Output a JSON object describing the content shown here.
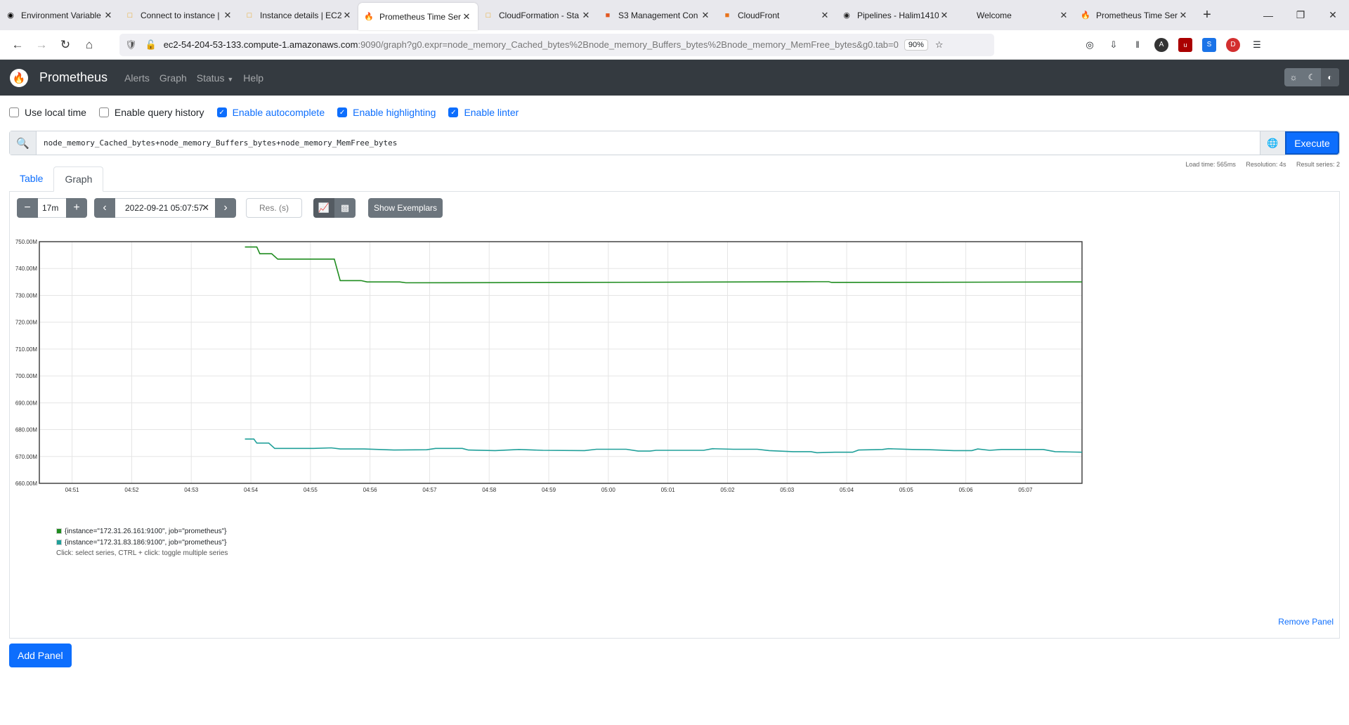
{
  "browser": {
    "tabs": [
      {
        "title": "Environment Variable",
        "icon": "github-icon",
        "active": false
      },
      {
        "title": "Connect to instance |",
        "icon": "aws-icon",
        "active": false
      },
      {
        "title": "Instance details | EC2",
        "icon": "aws-icon",
        "active": false
      },
      {
        "title": "Prometheus Time Ser",
        "icon": "prometheus-icon",
        "active": true
      },
      {
        "title": "CloudFormation - Sta",
        "icon": "aws-icon",
        "active": false
      },
      {
        "title": "S3 Management Con",
        "icon": "s3-icon",
        "active": false
      },
      {
        "title": "CloudFront",
        "icon": "cloudfront-icon",
        "active": false
      },
      {
        "title": "Pipelines - Halim1410",
        "icon": "circleci-icon",
        "active": false
      },
      {
        "title": "Welcome",
        "icon": "none",
        "active": false
      },
      {
        "title": "Prometheus Time Ser",
        "icon": "prometheus-icon",
        "active": false
      }
    ],
    "url_host": "ec2-54-204-53-133.compute-1.amazonaws.com",
    "url_rest": ":9090/graph?g0.expr=node_memory_Cached_bytes%2Bnode_memory_Buffers_bytes%2Bnode_memory_MemFree_bytes&g0.tab=0",
    "zoom": "90%"
  },
  "nav": {
    "brand": "Prometheus",
    "links": [
      "Alerts",
      "Graph",
      "Status",
      "Help"
    ]
  },
  "options": [
    {
      "label": "Use local time",
      "checked": false
    },
    {
      "label": "Enable query history",
      "checked": false
    },
    {
      "label": "Enable autocomplete",
      "checked": true
    },
    {
      "label": "Enable highlighting",
      "checked": true
    },
    {
      "label": "Enable linter",
      "checked": true
    }
  ],
  "query": {
    "expression": "node_memory_Cached_bytes+node_memory_Buffers_bytes+node_memory_MemFree_bytes",
    "execute_label": "Execute",
    "load_time": "Load time: 565ms",
    "resolution": "Resolution: 4s",
    "result_series": "Result series: 2"
  },
  "panel_tabs": {
    "table": "Table",
    "graph": "Graph"
  },
  "graph_controls": {
    "range": "17m",
    "end_time": "2022-09-21 05:07:57",
    "res_placeholder": "Res. (s)",
    "exemplars_label": "Show Exemplars"
  },
  "chart_data": {
    "type": "line",
    "y_ticks": [
      "750.00M",
      "740.00M",
      "730.00M",
      "720.00M",
      "710.00M",
      "700.00M",
      "690.00M",
      "680.00M",
      "670.00M",
      "660.00M"
    ],
    "ylim": [
      660,
      750
    ],
    "x_ticks": [
      "04:51",
      "04:52",
      "04:53",
      "04:54",
      "04:55",
      "04:56",
      "04:57",
      "04:58",
      "04:59",
      "05:00",
      "05:01",
      "05:02",
      "05:03",
      "05:04",
      "05:05",
      "05:06",
      "05:07"
    ],
    "x_minutes_start": 290.45,
    "x_minutes_end": 307.95,
    "series": [
      {
        "name": "{instance=\"172.31.26.161:9100\", job=\"prometheus\"}",
        "color": "#1f8c1f",
        "points": [
          [
            293.9,
            748
          ],
          [
            294.1,
            748
          ],
          [
            294.15,
            745.5
          ],
          [
            294.35,
            745.5
          ],
          [
            294.45,
            743.5
          ],
          [
            294.95,
            743.5
          ],
          [
            295.4,
            743.5
          ],
          [
            295.5,
            735.5
          ],
          [
            295.85,
            735.5
          ],
          [
            295.95,
            735
          ],
          [
            296.5,
            735
          ],
          [
            296.6,
            734.7
          ],
          [
            299.5,
            734.8
          ],
          [
            303.5,
            735.1
          ],
          [
            303.7,
            735.1
          ],
          [
            303.75,
            734.8
          ],
          [
            307.95,
            735
          ]
        ]
      },
      {
        "name": "{instance=\"172.31.83.186:9100\", job=\"prometheus\"}",
        "color": "#20a09a",
        "points": [
          [
            293.9,
            676.5
          ],
          [
            294.05,
            676.5
          ],
          [
            294.1,
            675
          ],
          [
            294.3,
            675
          ],
          [
            294.4,
            673
          ],
          [
            294.8,
            673
          ],
          [
            295.05,
            673
          ],
          [
            295.35,
            673.2
          ],
          [
            295.5,
            672.8
          ],
          [
            295.9,
            672.8
          ],
          [
            296.4,
            672.4
          ],
          [
            296.95,
            672.5
          ],
          [
            297.1,
            673
          ],
          [
            297.55,
            673
          ],
          [
            297.65,
            672.4
          ],
          [
            298.1,
            672.2
          ],
          [
            298.5,
            672.6
          ],
          [
            298.9,
            672.3
          ],
          [
            299.6,
            672.2
          ],
          [
            299.8,
            672.7
          ],
          [
            300.3,
            672.7
          ],
          [
            300.5,
            672.0
          ],
          [
            300.7,
            672.0
          ],
          [
            300.8,
            672.3
          ],
          [
            301.6,
            672.3
          ],
          [
            301.75,
            672.9
          ],
          [
            302.1,
            672.7
          ],
          [
            302.5,
            672.7
          ],
          [
            302.7,
            672.2
          ],
          [
            303.1,
            671.8
          ],
          [
            303.4,
            671.8
          ],
          [
            303.5,
            671.4
          ],
          [
            303.8,
            671.6
          ],
          [
            304.1,
            671.6
          ],
          [
            304.2,
            672.4
          ],
          [
            304.6,
            672.6
          ],
          [
            304.7,
            672.9
          ],
          [
            305.1,
            672.6
          ],
          [
            305.4,
            672.5
          ],
          [
            305.8,
            672.2
          ],
          [
            306.1,
            672.2
          ],
          [
            306.2,
            672.8
          ],
          [
            306.4,
            672.3
          ],
          [
            306.6,
            672.6
          ],
          [
            307.3,
            672.6
          ],
          [
            307.5,
            671.8
          ],
          [
            307.95,
            671.6
          ]
        ]
      }
    ]
  },
  "legend_hint": "Click: select series, CTRL + click: toggle multiple series",
  "remove_panel": "Remove Panel",
  "add_panel": "Add Panel"
}
